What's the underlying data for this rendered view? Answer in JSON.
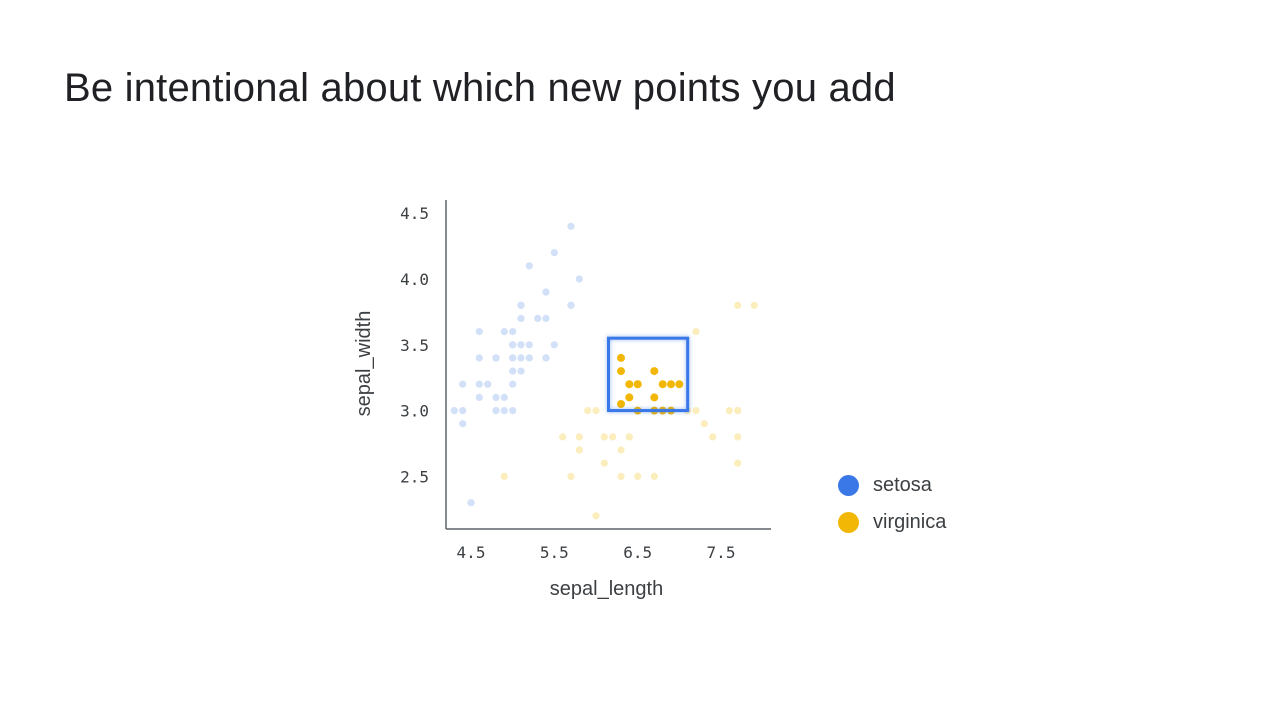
{
  "slide": {
    "title": "Be intentional about which new points you add"
  },
  "colors": {
    "setosa": "#3a78e7",
    "setosa_faded": "#d2e0f8",
    "virginica": "#f2b705",
    "virginica_faded": "#fbedbc",
    "axis": "#5f6368",
    "selection": "#3a78e7"
  },
  "legend": {
    "items": [
      {
        "label": "setosa",
        "color": "#3a78e7"
      },
      {
        "label": "virginica",
        "color": "#f2b705"
      }
    ]
  },
  "chart_data": {
    "type": "scatter",
    "title": "",
    "xlabel": "sepal_length",
    "ylabel": "sepal_width",
    "xlim": [
      4.2,
      8.1
    ],
    "ylim": [
      2.1,
      4.6
    ],
    "x_ticks": [
      4.5,
      5.5,
      6.5,
      7.5
    ],
    "x_tick_labels": [
      "4.5",
      "5.5",
      "6.5",
      "7.5"
    ],
    "y_ticks": [
      2.5,
      3.0,
      3.5,
      4.0,
      4.5
    ],
    "y_tick_labels": [
      "2.5",
      "3.0",
      "3.5",
      "4.0",
      "4.5"
    ],
    "grid": false,
    "legend_position": "bottom-right",
    "selection_box": {
      "x": [
        6.15,
        7.1
      ],
      "y": [
        3.0,
        3.55
      ]
    },
    "series": [
      {
        "name": "setosa",
        "faded": true,
        "points": [
          [
            4.3,
            3.0
          ],
          [
            4.4,
            3.0
          ],
          [
            4.4,
            2.9
          ],
          [
            4.4,
            3.2
          ],
          [
            4.5,
            2.3
          ],
          [
            4.6,
            3.1
          ],
          [
            4.6,
            3.4
          ],
          [
            4.6,
            3.6
          ],
          [
            4.6,
            3.2
          ],
          [
            4.7,
            3.2
          ],
          [
            4.7,
            3.2
          ],
          [
            4.8,
            3.4
          ],
          [
            4.8,
            3.0
          ],
          [
            4.8,
            3.4
          ],
          [
            4.8,
            3.1
          ],
          [
            4.8,
            3.0
          ],
          [
            4.9,
            3.0
          ],
          [
            4.9,
            3.1
          ],
          [
            4.9,
            3.6
          ],
          [
            5.0,
            3.6
          ],
          [
            5.0,
            3.4
          ],
          [
            5.0,
            3.0
          ],
          [
            5.0,
            3.4
          ],
          [
            5.0,
            3.2
          ],
          [
            5.0,
            3.5
          ],
          [
            5.0,
            3.5
          ],
          [
            5.0,
            3.3
          ],
          [
            5.1,
            3.5
          ],
          [
            5.1,
            3.5
          ],
          [
            5.1,
            3.8
          ],
          [
            5.1,
            3.7
          ],
          [
            5.1,
            3.3
          ],
          [
            5.1,
            3.4
          ],
          [
            5.1,
            3.8
          ],
          [
            5.1,
            3.8
          ],
          [
            5.2,
            3.5
          ],
          [
            5.2,
            3.4
          ],
          [
            5.2,
            4.1
          ],
          [
            5.3,
            3.7
          ],
          [
            5.4,
            3.9
          ],
          [
            5.4,
            3.7
          ],
          [
            5.4,
            3.4
          ],
          [
            5.4,
            3.9
          ],
          [
            5.4,
            3.4
          ],
          [
            5.5,
            4.2
          ],
          [
            5.5,
            3.5
          ],
          [
            5.7,
            4.4
          ],
          [
            5.7,
            3.8
          ],
          [
            5.8,
            4.0
          ],
          [
            5.7,
            3.8
          ]
        ]
      },
      {
        "name": "virginica",
        "faded": true,
        "points": [
          [
            4.9,
            2.5
          ],
          [
            5.6,
            2.8
          ],
          [
            5.7,
            2.5
          ],
          [
            5.8,
            2.8
          ],
          [
            5.8,
            2.7
          ],
          [
            5.8,
            2.7
          ],
          [
            5.9,
            3.0
          ],
          [
            6.0,
            2.2
          ],
          [
            6.0,
            3.0
          ],
          [
            6.1,
            2.8
          ],
          [
            6.1,
            2.6
          ],
          [
            6.2,
            2.8
          ],
          [
            6.3,
            2.7
          ],
          [
            6.3,
            2.5
          ],
          [
            6.4,
            2.8
          ],
          [
            6.4,
            2.8
          ],
          [
            6.5,
            3.0
          ],
          [
            6.5,
            2.5
          ],
          [
            6.7,
            2.5
          ],
          [
            6.9,
            3.1
          ],
          [
            7.1,
            3.0
          ],
          [
            7.2,
            3.6
          ],
          [
            7.2,
            3.0
          ],
          [
            7.3,
            2.9
          ],
          [
            7.4,
            2.8
          ],
          [
            7.6,
            3.0
          ],
          [
            7.7,
            3.8
          ],
          [
            7.7,
            2.6
          ],
          [
            7.7,
            2.8
          ],
          [
            7.7,
            3.0
          ],
          [
            7.9,
            3.8
          ],
          [
            7.7,
            3.0
          ]
        ]
      },
      {
        "name": "virginica",
        "faded": false,
        "points": [
          [
            6.3,
            3.3
          ],
          [
            6.3,
            3.4
          ],
          [
            6.3,
            3.05
          ],
          [
            6.4,
            3.2
          ],
          [
            6.4,
            3.1
          ],
          [
            6.5,
            3.2
          ],
          [
            6.5,
            3.2
          ],
          [
            6.5,
            3.0
          ],
          [
            6.7,
            3.3
          ],
          [
            6.7,
            3.1
          ],
          [
            6.7,
            3.0
          ],
          [
            6.8,
            3.2
          ],
          [
            6.8,
            3.0
          ],
          [
            6.9,
            3.2
          ],
          [
            6.9,
            3.0
          ],
          [
            7.0,
            3.2
          ]
        ]
      }
    ]
  }
}
